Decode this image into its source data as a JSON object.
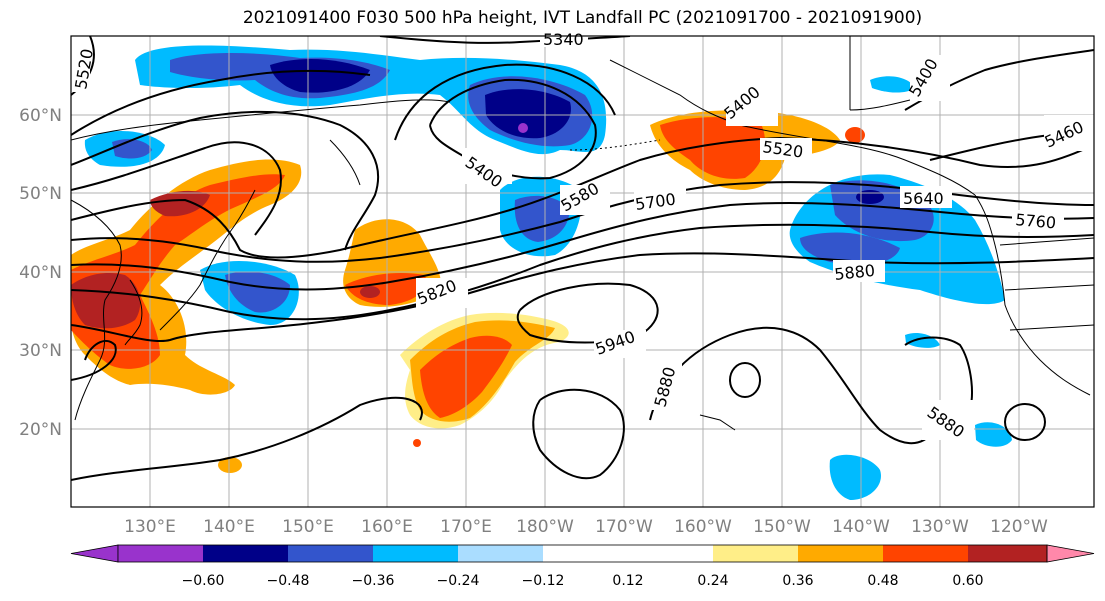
{
  "title": "2021091400 F030 500 hPa height, IVT Landfall PC (2021091700 - 2021091900)",
  "map": {
    "lon_labels": [
      "130°E",
      "140°E",
      "150°E",
      "160°E",
      "170°E",
      "180°W",
      "170°W",
      "160°W",
      "150°W",
      "140°W",
      "130°W",
      "120°W"
    ],
    "lat_labels": [
      "60°N",
      "50°N",
      "40°N",
      "30°N",
      "20°N"
    ],
    "contour_labels": [
      {
        "text": "5340",
        "id": "c5340"
      },
      {
        "text": "5520",
        "id": "c5520w"
      },
      {
        "text": "5400",
        "id": "c5400w"
      },
      {
        "text": "5580",
        "id": "c5580"
      },
      {
        "text": "5700",
        "id": "c5700"
      },
      {
        "text": "5820",
        "id": "c5820"
      },
      {
        "text": "5940",
        "id": "c5940"
      },
      {
        "text": "5880",
        "id": "c5880a"
      },
      {
        "text": "5400",
        "id": "c5400e"
      },
      {
        "text": "5520",
        "id": "c5520e"
      },
      {
        "text": "5400",
        "id": "c5400ne"
      },
      {
        "text": "5460",
        "id": "c5460"
      },
      {
        "text": "5640",
        "id": "c5640"
      },
      {
        "text": "5760",
        "id": "c5760"
      },
      {
        "text": "5880",
        "id": "c5880b"
      },
      {
        "text": "5880",
        "id": "c5880c"
      }
    ]
  },
  "colorbar": {
    "colors": [
      "#9933cc",
      "#000088",
      "#3355cc",
      "#00bbff",
      "#aaddff",
      "#ffffff",
      "#ffee88",
      "#ffaa00",
      "#ff4400",
      "#b22222",
      "#ff88aa"
    ],
    "ticks": [
      "−0.60",
      "−0.48",
      "−0.36",
      "−0.24",
      "−0.12",
      "0.12",
      "0.24",
      "0.36",
      "0.48",
      "0.60"
    ]
  }
}
